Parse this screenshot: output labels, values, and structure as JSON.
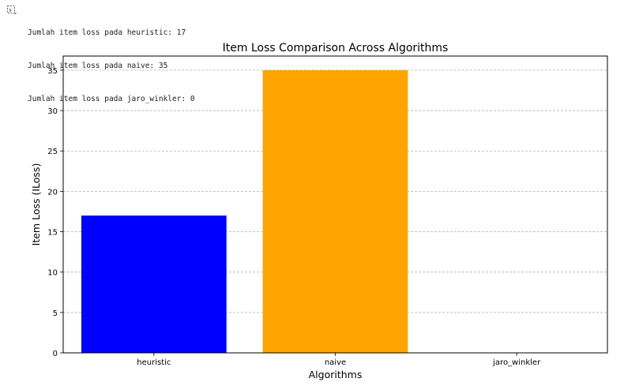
{
  "output": {
    "icon": "output-toggle-icon",
    "lines": [
      "Jumlah item loss pada heuristic: 17",
      "Jumlah item loss pada naive: 35",
      "Jumlah item loss pada jaro_winkler: 0"
    ]
  },
  "chart_data": {
    "type": "bar",
    "title": "Item Loss Comparison Across Algorithms",
    "xlabel": "Algorithms",
    "ylabel": "Item Loss (ILoss)",
    "categories": [
      "heuristic",
      "naive",
      "jaro_winkler"
    ],
    "values": [
      17,
      35,
      0
    ],
    "colors": [
      "#0000ff",
      "#ffa500",
      "#008000"
    ],
    "ylim": [
      0,
      36.75
    ],
    "yticks": [
      0,
      5,
      10,
      15,
      20,
      25,
      30,
      35
    ],
    "grid": "y-dashed"
  }
}
